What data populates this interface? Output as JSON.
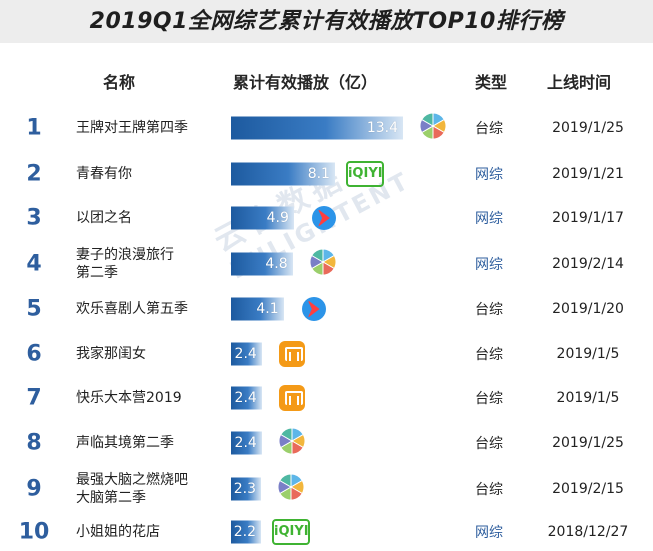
{
  "title": "2019Q1全网综艺累计有效播放TOP10排行榜",
  "headers": {
    "name": "名称",
    "plays": "累计有效播放（亿）",
    "type": "类型",
    "date": "上线时间"
  },
  "watermark": {
    "cn": "云合数据",
    "en": "ENLIGHTENT"
  },
  "colors": {
    "rank": "#2e5e9e",
    "type_tv": "#222222",
    "type_web": "#2e5e9e"
  },
  "chart_data": {
    "type": "bar",
    "ylabel": "累计有效播放（亿）",
    "categories": [
      "王牌对王牌第四季",
      "青春有你",
      "以团之名",
      "妻子的浪漫旅行\n第二季",
      "欢乐喜剧人第五季",
      "我家那闺女",
      "快乐大本营2019",
      "声临其境第二季",
      "最强大脑之燃烧吧\n大脑第二季",
      "小姐姐的花店"
    ],
    "values": [
      13.4,
      8.1,
      4.9,
      4.8,
      4.1,
      2.4,
      2.4,
      2.4,
      2.3,
      2.2
    ],
    "value_labels": [
      "13.4",
      "8.1",
      "4.9",
      "4.8",
      "4.1",
      "2.4",
      "2.4",
      "2.4",
      "2.3",
      "2.2"
    ],
    "ranks": [
      "1",
      "2",
      "3",
      "4",
      "5",
      "6",
      "7",
      "8",
      "9",
      "10"
    ],
    "types": [
      "台综",
      "网综",
      "网综",
      "网综",
      "台综",
      "台综",
      "台综",
      "台综",
      "台综",
      "网综"
    ],
    "dates": [
      "2019/1/25",
      "2019/1/21",
      "2019/1/17",
      "2019/2/14",
      "2019/1/20",
      "2019/1/5",
      "2019/1/5",
      "2019/1/25",
      "2019/2/15",
      "2018/12/27"
    ],
    "platform_icons": [
      "multi-platform-icon",
      "iqiyi-icon",
      "tencent-video-icon",
      "multi-platform-icon",
      "tencent-video-icon",
      "mango-tv-icon",
      "mango-tv-icon",
      "multi-platform-icon",
      "multi-platform-icon",
      "iqiyi-icon"
    ],
    "iqiyi_text": "iQIYI"
  }
}
